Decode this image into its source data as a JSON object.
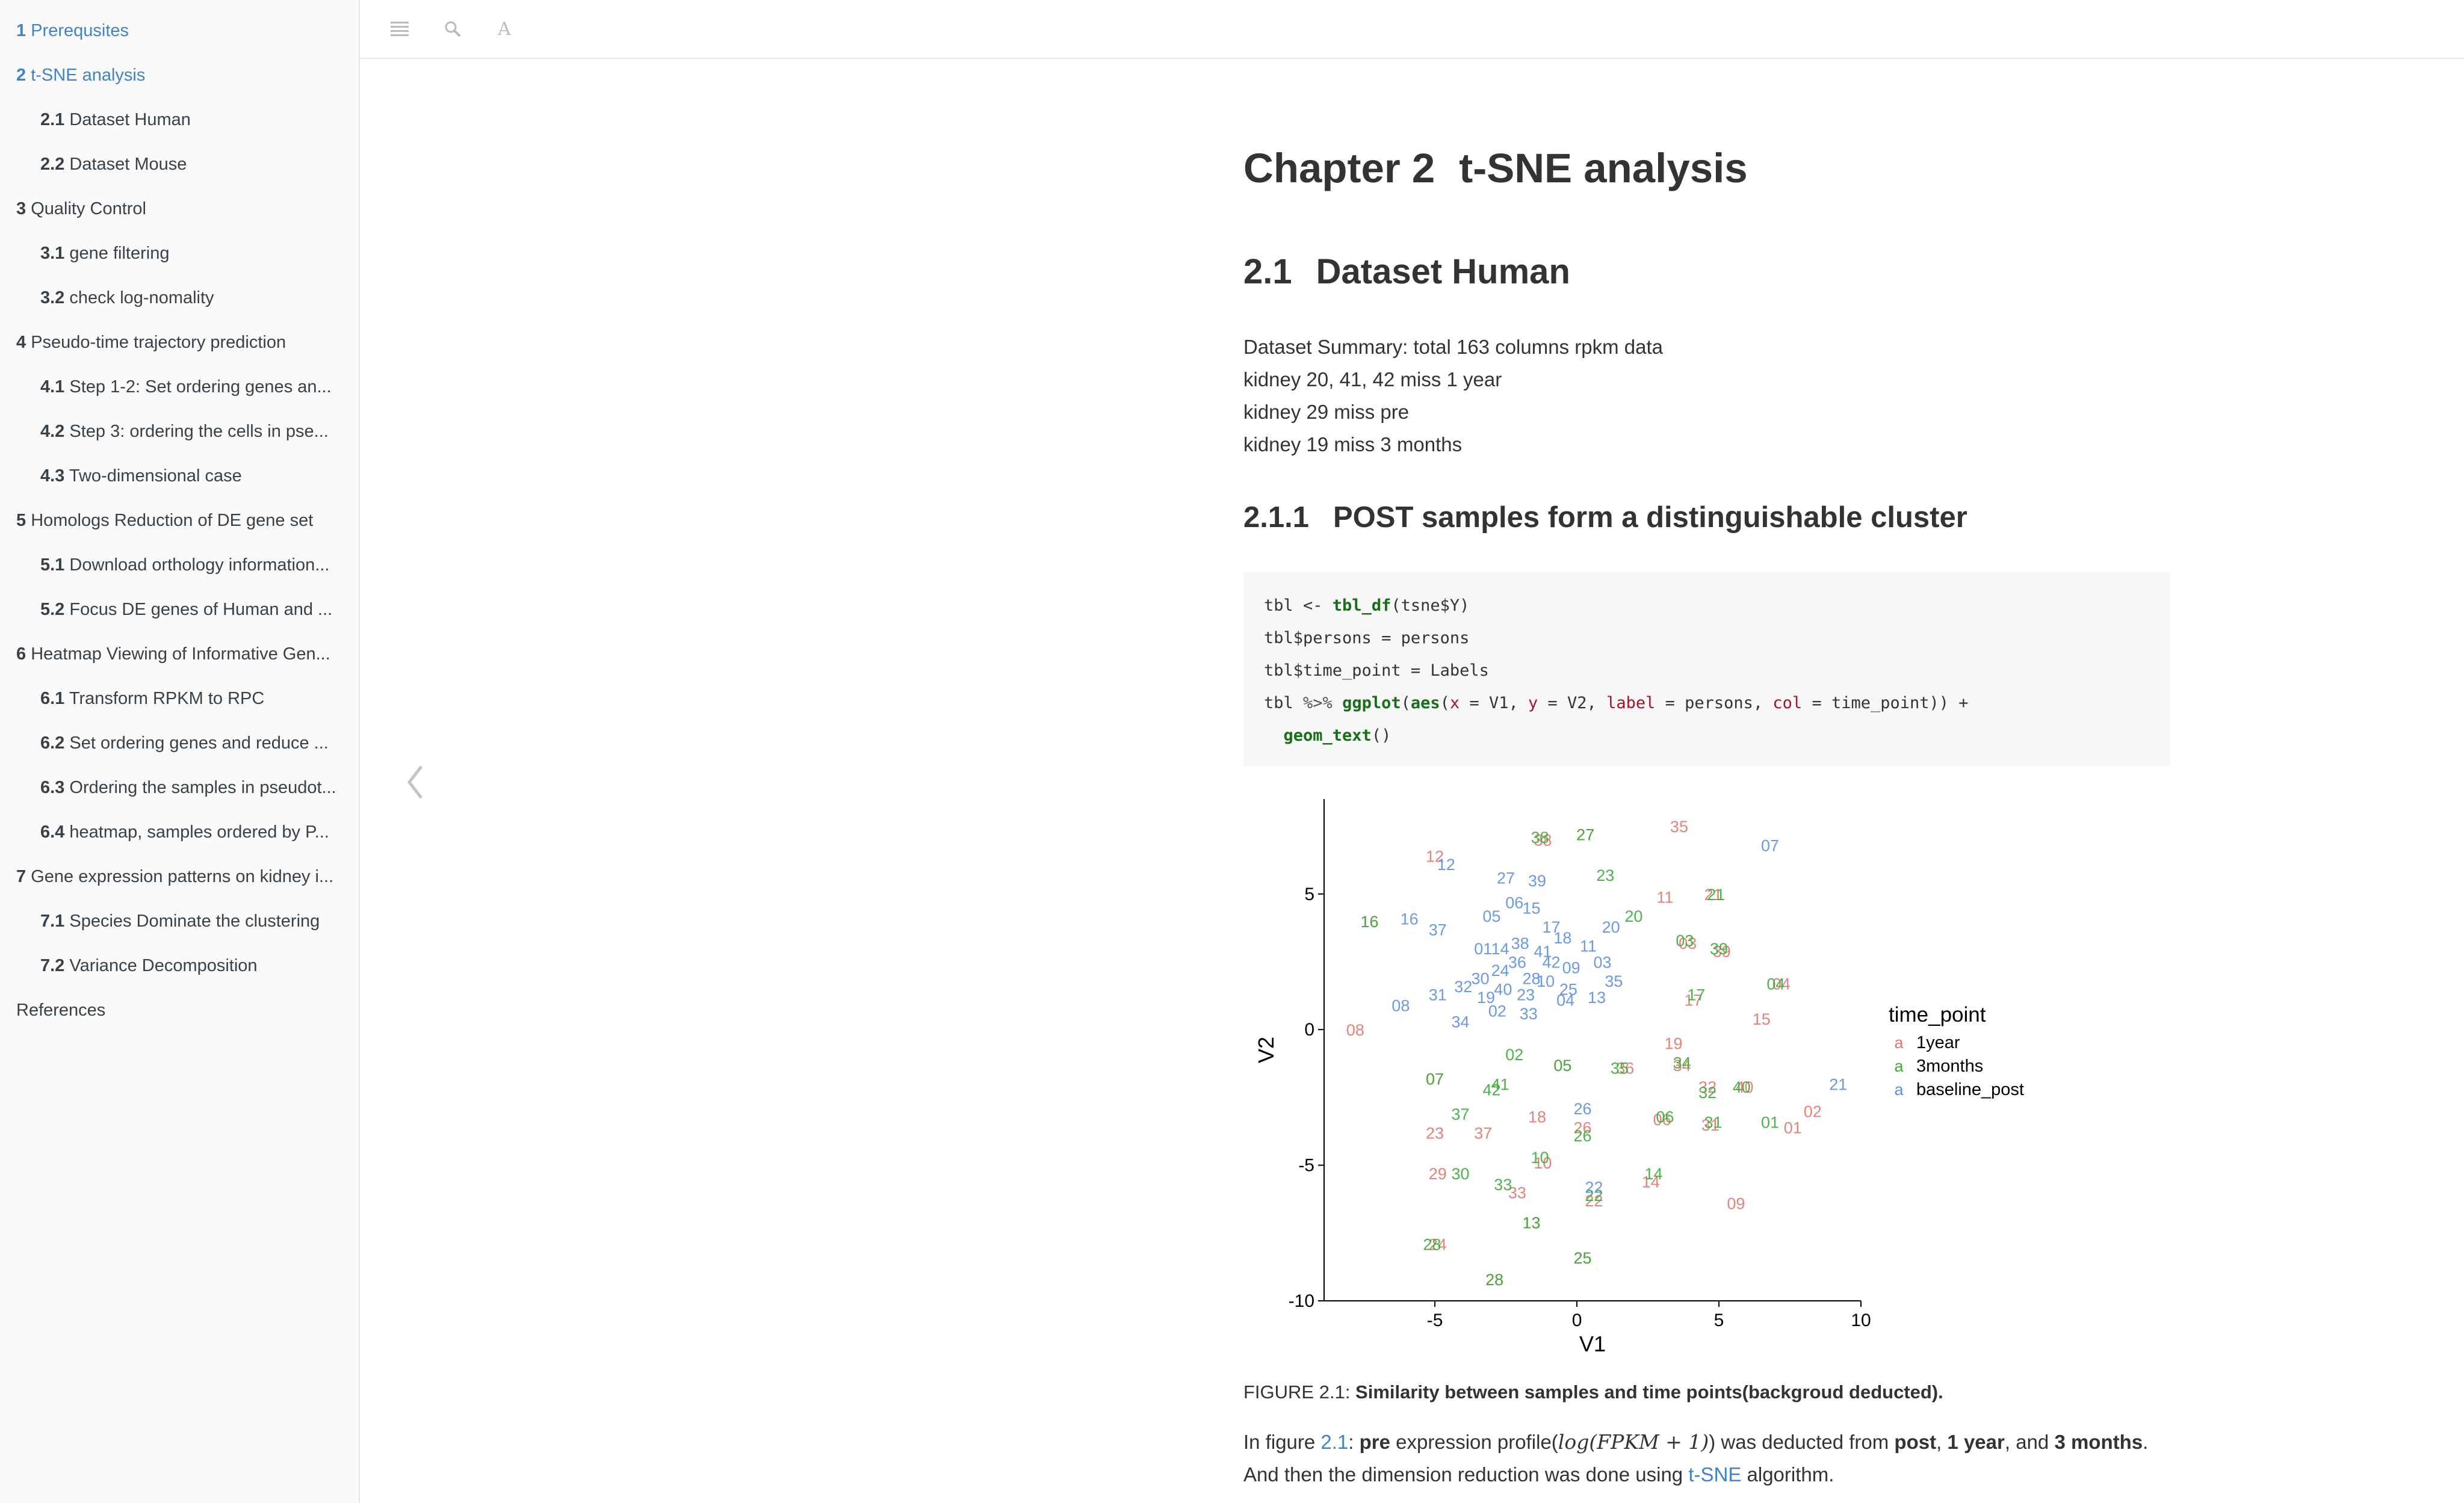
{
  "toc": [
    {
      "level": 1,
      "num": "1",
      "label": "Prerequsites",
      "active": true
    },
    {
      "level": 1,
      "num": "2",
      "label": "t-SNE analysis",
      "active": true
    },
    {
      "level": 2,
      "num": "2.1",
      "label": "Dataset Human"
    },
    {
      "level": 2,
      "num": "2.2",
      "label": "Dataset Mouse"
    },
    {
      "level": 1,
      "num": "3",
      "label": "Quality Control"
    },
    {
      "level": 2,
      "num": "3.1",
      "label": "gene filtering"
    },
    {
      "level": 2,
      "num": "3.2",
      "label": "check log-nomality"
    },
    {
      "level": 1,
      "num": "4",
      "label": "Pseudo-time trajectory prediction"
    },
    {
      "level": 2,
      "num": "4.1",
      "label": "Step 1-2: Set ordering genes an..."
    },
    {
      "level": 2,
      "num": "4.2",
      "label": "Step 3: ordering the cells in pse..."
    },
    {
      "level": 2,
      "num": "4.3",
      "label": "Two-dimensional case"
    },
    {
      "level": 1,
      "num": "5",
      "label": "Homologs Reduction of DE gene set"
    },
    {
      "level": 2,
      "num": "5.1",
      "label": "Download orthology information..."
    },
    {
      "level": 2,
      "num": "5.2",
      "label": "Focus DE genes of Human and ..."
    },
    {
      "level": 1,
      "num": "6",
      "label": "Heatmap Viewing of Informative Gen..."
    },
    {
      "level": 2,
      "num": "6.1",
      "label": "Transform RPKM to RPC"
    },
    {
      "level": 2,
      "num": "6.2",
      "label": "Set ordering genes and reduce ..."
    },
    {
      "level": 2,
      "num": "6.3",
      "label": "Ordering the samples in pseudot..."
    },
    {
      "level": 2,
      "num": "6.4",
      "label": "heatmap, samples ordered by P..."
    },
    {
      "level": 1,
      "num": "7",
      "label": "Gene expression patterns on kidney i..."
    },
    {
      "level": 2,
      "num": "7.1",
      "label": "Species Dominate the clustering"
    },
    {
      "level": 2,
      "num": "7.2",
      "label": "Variance Decomposition"
    },
    {
      "level": 0,
      "num": "",
      "label": "References"
    }
  ],
  "toolbar": {
    "icons": [
      "menu-icon",
      "search-icon",
      "font-icon"
    ],
    "font_glyph": "A"
  },
  "chapter": {
    "num": "Chapter 2",
    "title": "t-SNE analysis"
  },
  "section": {
    "num": "2.1",
    "title": "Dataset Human"
  },
  "summary": [
    "Dataset Summary: total 163 columns rpkm data",
    "kidney 20, 41, 42 miss 1 year",
    "kidney 29 miss pre",
    "kidney 19 miss 3 months"
  ],
  "subsection": {
    "num": "2.1.1",
    "title": "POST samples form a distinguishable cluster"
  },
  "code": {
    "l1a": "tbl <- ",
    "l1fn": "tbl_df",
    "l1b": "(tsne$Y)",
    "l2": "tbl$persons = persons",
    "l3": "tbl$time_point = Labels",
    "l4a": "tbl ",
    "l4op": "%>%",
    "l4b": " ",
    "l4fn1": "ggplot",
    "l4c": "(",
    "l4fn2": "aes",
    "l4d": "(",
    "l4x": "x",
    "l4e": " = V1, ",
    "l4y": "y",
    "l4f": " = V2, ",
    "l4lab": "label",
    "l4g": " = persons, ",
    "l4col": "col",
    "l4h": " = time_point)) +",
    "l5fn": "geom_text",
    "l5b": "()"
  },
  "chart_data": {
    "type": "scatter",
    "xlabel": "V1",
    "ylabel": "V2",
    "xlim": [
      -8.9,
      10
    ],
    "ylim": [
      -10,
      8.5
    ],
    "xticks": [
      "-5",
      "0",
      "5",
      "10"
    ],
    "yticks": [
      "-10",
      "-5",
      "0",
      "5"
    ],
    "legend_title": "time_point",
    "legend_position": "right",
    "legend_glyph": "a",
    "colors": {
      "1year": "#e0766e",
      "3months": "#3aac3a",
      "baseline_post": "#5b8fe0"
    },
    "series": [
      {
        "name": "1year",
        "points": [
          {
            "label": "12",
            "x": -5.0,
            "y": 6.4
          },
          {
            "label": "38",
            "x": -1.2,
            "y": 7.0
          },
          {
            "label": "27",
            "x": 0.3,
            "y": 7.2
          },
          {
            "label": "35",
            "x": 3.6,
            "y": 7.5
          },
          {
            "label": "16",
            "x": -7.3,
            "y": 4.0
          },
          {
            "label": "11",
            "x": 3.1,
            "y": 4.9
          },
          {
            "label": "21",
            "x": 4.8,
            "y": 5.0
          },
          {
            "label": "03",
            "x": 3.9,
            "y": 3.2
          },
          {
            "label": "39",
            "x": 5.1,
            "y": 2.9
          },
          {
            "label": "04",
            "x": 7.2,
            "y": 1.7
          },
          {
            "label": "17",
            "x": 4.1,
            "y": 1.1
          },
          {
            "label": "15",
            "x": 6.5,
            "y": 0.4
          },
          {
            "label": "08",
            "x": -7.8,
            "y": 0.0
          },
          {
            "label": "19",
            "x": 3.4,
            "y": -0.5
          },
          {
            "label": "07",
            "x": -5.0,
            "y": -1.8
          },
          {
            "label": "05",
            "x": -0.5,
            "y": -1.3
          },
          {
            "label": "36",
            "x": 1.7,
            "y": -1.4
          },
          {
            "label": "34",
            "x": 3.7,
            "y": -1.3
          },
          {
            "label": "32",
            "x": 4.6,
            "y": -2.1
          },
          {
            "label": "40",
            "x": 5.9,
            "y": -2.1
          },
          {
            "label": "02",
            "x": 8.3,
            "y": -3.0
          },
          {
            "label": "01",
            "x": 7.6,
            "y": -3.6
          },
          {
            "label": "18",
            "x": -1.4,
            "y": -3.2
          },
          {
            "label": "26",
            "x": 0.2,
            "y": -3.6
          },
          {
            "label": "06",
            "x": 3.0,
            "y": -3.3
          },
          {
            "label": "31",
            "x": 4.7,
            "y": -3.5
          },
          {
            "label": "23",
            "x": -5.0,
            "y": -3.8
          },
          {
            "label": "37",
            "x": -3.3,
            "y": -3.8
          },
          {
            "label": "10",
            "x": -1.2,
            "y": -4.9
          },
          {
            "label": "29",
            "x": -4.9,
            "y": -5.3
          },
          {
            "label": "14",
            "x": 2.6,
            "y": -5.6
          },
          {
            "label": "33",
            "x": -2.1,
            "y": -6.0
          },
          {
            "label": "22",
            "x": 0.6,
            "y": -6.3
          },
          {
            "label": "09",
            "x": 5.6,
            "y": -6.4
          },
          {
            "label": "13",
            "x": -1.6,
            "y": -7.1
          },
          {
            "label": "24",
            "x": -4.9,
            "y": -7.9
          },
          {
            "label": "28",
            "x": -2.9,
            "y": -9.2
          },
          {
            "label": "25",
            "x": 0.2,
            "y": -8.4
          }
        ]
      },
      {
        "name": "3months",
        "points": [
          {
            "label": "38",
            "x": -1.3,
            "y": 7.1
          },
          {
            "label": "27",
            "x": 0.3,
            "y": 7.2
          },
          {
            "label": "23",
            "x": 1.0,
            "y": 5.7
          },
          {
            "label": "21",
            "x": 4.9,
            "y": 5.0
          },
          {
            "label": "20",
            "x": 2.0,
            "y": 4.2
          },
          {
            "label": "03",
            "x": 3.8,
            "y": 3.3
          },
          {
            "label": "39",
            "x": 5.0,
            "y": 3.0
          },
          {
            "label": "04",
            "x": 7.0,
            "y": 1.7
          },
          {
            "label": "17",
            "x": 4.2,
            "y": 1.3
          },
          {
            "label": "16",
            "x": -7.3,
            "y": 4.0
          },
          {
            "label": "02",
            "x": -2.2,
            "y": -0.9
          },
          {
            "label": "05",
            "x": -0.5,
            "y": -1.3
          },
          {
            "label": "35",
            "x": 1.5,
            "y": -1.4
          },
          {
            "label": "34",
            "x": 3.7,
            "y": -1.2
          },
          {
            "label": "41",
            "x": -2.7,
            "y": -2.0
          },
          {
            "label": "42",
            "x": -3.0,
            "y": -2.2
          },
          {
            "label": "40",
            "x": 5.8,
            "y": -2.1
          },
          {
            "label": "32",
            "x": 4.6,
            "y": -2.3
          },
          {
            "label": "07",
            "x": -5.0,
            "y": -1.8
          },
          {
            "label": "37",
            "x": -4.1,
            "y": -3.1
          },
          {
            "label": "26",
            "x": 0.2,
            "y": -3.9
          },
          {
            "label": "06",
            "x": 3.1,
            "y": -3.2
          },
          {
            "label": "31",
            "x": 4.8,
            "y": -3.4
          },
          {
            "label": "01",
            "x": 6.8,
            "y": -3.4
          },
          {
            "label": "10",
            "x": -1.3,
            "y": -4.7
          },
          {
            "label": "30",
            "x": -4.1,
            "y": -5.3
          },
          {
            "label": "14",
            "x": 2.7,
            "y": -5.3
          },
          {
            "label": "33",
            "x": -2.6,
            "y": -5.7
          },
          {
            "label": "22",
            "x": 0.6,
            "y": -6.1
          },
          {
            "label": "13",
            "x": -1.6,
            "y": -7.1
          },
          {
            "label": "28",
            "x": -5.1,
            "y": -7.9
          },
          {
            "label": "25",
            "x": 0.2,
            "y": -8.4
          },
          {
            "label": "28",
            "x": -2.9,
            "y": -9.2
          }
        ]
      },
      {
        "name": "baseline_post",
        "points": [
          {
            "label": "12",
            "x": -4.6,
            "y": 6.1
          },
          {
            "label": "27",
            "x": -2.5,
            "y": 5.6
          },
          {
            "label": "39",
            "x": -1.4,
            "y": 5.5
          },
          {
            "label": "07",
            "x": 6.8,
            "y": 6.8
          },
          {
            "label": "06",
            "x": -2.2,
            "y": 4.7
          },
          {
            "label": "15",
            "x": -1.6,
            "y": 4.5
          },
          {
            "label": "16",
            "x": -5.9,
            "y": 4.1
          },
          {
            "label": "05",
            "x": -3.0,
            "y": 4.2
          },
          {
            "label": "37",
            "x": -4.9,
            "y": 3.7
          },
          {
            "label": "17",
            "x": -0.9,
            "y": 3.8
          },
          {
            "label": "20",
            "x": 1.2,
            "y": 3.8
          },
          {
            "label": "18",
            "x": -0.5,
            "y": 3.4
          },
          {
            "label": "38",
            "x": -2.0,
            "y": 3.2
          },
          {
            "label": "11",
            "x": 0.4,
            "y": 3.1
          },
          {
            "label": "01",
            "x": -3.3,
            "y": 3.0
          },
          {
            "label": "14",
            "x": -2.7,
            "y": 3.0
          },
          {
            "label": "41",
            "x": -1.2,
            "y": 2.9
          },
          {
            "label": "36",
            "x": -2.1,
            "y": 2.5
          },
          {
            "label": "42",
            "x": -0.9,
            "y": 2.5
          },
          {
            "label": "03",
            "x": 0.9,
            "y": 2.5
          },
          {
            "label": "09",
            "x": -0.2,
            "y": 2.3
          },
          {
            "label": "24",
            "x": -2.7,
            "y": 2.2
          },
          {
            "label": "30",
            "x": -3.4,
            "y": 1.9
          },
          {
            "label": "28",
            "x": -1.6,
            "y": 1.9
          },
          {
            "label": "35",
            "x": 1.3,
            "y": 1.8
          },
          {
            "label": "10",
            "x": -1.1,
            "y": 1.8
          },
          {
            "label": "32",
            "x": -4.0,
            "y": 1.6
          },
          {
            "label": "40",
            "x": -2.6,
            "y": 1.5
          },
          {
            "label": "25",
            "x": -0.3,
            "y": 1.5
          },
          {
            "label": "31",
            "x": -4.9,
            "y": 1.3
          },
          {
            "label": "19",
            "x": -3.2,
            "y": 1.2
          },
          {
            "label": "23",
            "x": -1.8,
            "y": 1.3
          },
          {
            "label": "04",
            "x": -0.4,
            "y": 1.1
          },
          {
            "label": "13",
            "x": 0.7,
            "y": 1.2
          },
          {
            "label": "08",
            "x": -6.2,
            "y": 0.9
          },
          {
            "label": "02",
            "x": -2.8,
            "y": 0.7
          },
          {
            "label": "33",
            "x": -1.7,
            "y": 0.6
          },
          {
            "label": "34",
            "x": -4.1,
            "y": 0.3
          },
          {
            "label": "21",
            "x": 9.2,
            "y": -2.0
          },
          {
            "label": "26",
            "x": 0.2,
            "y": -2.9
          },
          {
            "label": "22",
            "x": 0.6,
            "y": -5.8
          }
        ]
      }
    ]
  },
  "caption": {
    "prefix": "FIGURE 2.1: ",
    "text": "Similarity between samples and time points(backgroud deducted)."
  },
  "bottom": {
    "t1": "In figure ",
    "link1": "2.1",
    "t2": ": ",
    "b1": "pre",
    "t3": " expression profile(",
    "math": "log(FPKM + 1)",
    "t4": ") was deducted from ",
    "b2": "post",
    "t5": ", ",
    "b3": "1 year",
    "t6": ", and ",
    "b4": "3 months",
    "t7": ".",
    "l2a": "And then the dimension reduction was done using ",
    "link2": "t-SNE",
    "l2b": " algorithm."
  }
}
